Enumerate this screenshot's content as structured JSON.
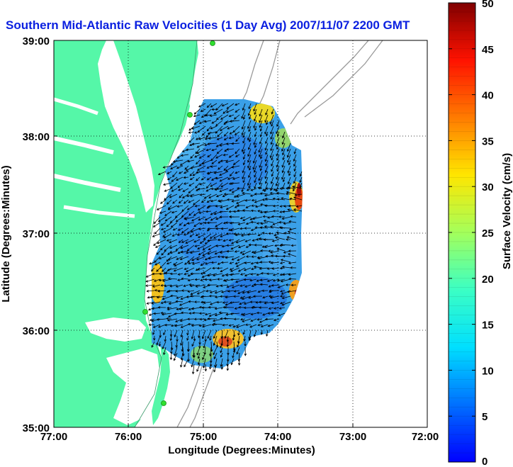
{
  "title": "Southern Mid-Atlantic Raw Velocities (1 Day Avg) 2007/11/07 2200 GMT",
  "axes": {
    "xlabel": "Longitude (Degrees:Minutes)",
    "ylabel": "Latitude (Degrees:Minutes)",
    "xticks": [
      "77:00",
      "76:00",
      "75:00",
      "74:00",
      "73:00",
      "72:00"
    ],
    "yticks": [
      "39:00",
      "38:00",
      "37:00",
      "36:00",
      "35:00"
    ]
  },
  "colorbar": {
    "label": "Surface Velocity (cm/s)",
    "ticks": [
      "50",
      "45",
      "40",
      "35",
      "30",
      "25",
      "20",
      "15",
      "10",
      "5",
      "0"
    ],
    "min": 0,
    "max": 50,
    "colormap": "jet"
  },
  "colors": {
    "land": "#55f7a8",
    "water": "#ffffff",
    "title": "#0b20e0",
    "bathymetry": "#9a9a9a",
    "station": "#2fdf2f",
    "field_base": "#3aa0e8"
  },
  "map": {
    "lon_range": [
      -77,
      -72
    ],
    "lat_range": [
      35,
      39
    ],
    "grid": "dotted"
  }
}
